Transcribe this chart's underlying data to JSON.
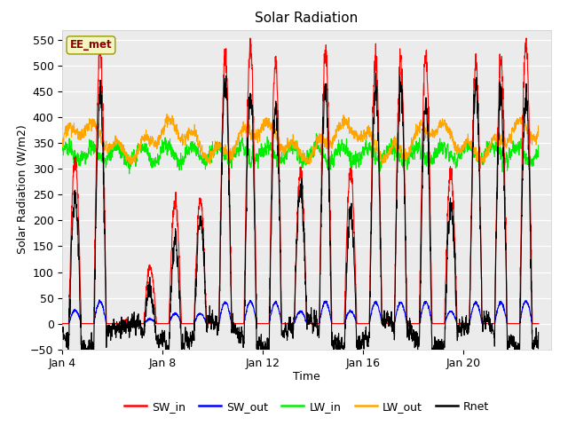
{
  "title": "Solar Radiation",
  "xlabel": "Time",
  "ylabel": "Solar Radiation (W/m2)",
  "ylim": [
    -50,
    570
  ],
  "yticks": [
    -50,
    0,
    50,
    100,
    150,
    200,
    250,
    300,
    350,
    400,
    450,
    500,
    550
  ],
  "plot_bg_color": "#ebebeb",
  "fig_bg_color": "#ffffff",
  "annotation_text": "EE_met",
  "annotation_color": "#8B0000",
  "annotation_bg": "#f5f5c0",
  "annotation_edge": "#999900",
  "legend_items": [
    "SW_in",
    "SW_out",
    "LW_in",
    "LW_out",
    "Rnet"
  ],
  "colors": {
    "SW_in": "#ff0000",
    "SW_out": "#0000ff",
    "LW_in": "#00ee00",
    "LW_out": "#ffa500",
    "Rnet": "#000000"
  },
  "xtick_labels": [
    "Jan 4",
    "Jan 8",
    "Jan 12",
    "Jan 16",
    "Jan 20"
  ],
  "xtick_positions": [
    3,
    7,
    11,
    15,
    19
  ],
  "start_day": 3,
  "end_day": 22,
  "steps_per_day": 144
}
